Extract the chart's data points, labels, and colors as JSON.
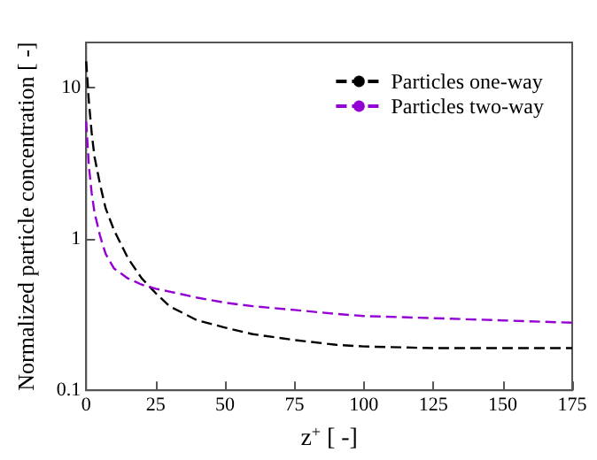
{
  "chart_data": {
    "type": "line",
    "xlabel": "z$^{+}$ [ -]",
    "ylabel": "Normalized particle concentration [ -]",
    "log": "y",
    "xlim": [
      0,
      175
    ],
    "xticks": [
      0,
      25,
      50,
      75,
      100,
      125,
      150,
      175
    ],
    "ylim": [
      0.1,
      20
    ],
    "yticks": [
      0.1,
      1,
      10
    ],
    "grid": false,
    "legend": "top right",
    "line_style": "dashed",
    "marker": "none",
    "x": [
      0,
      1,
      2,
      3,
      5,
      7,
      10,
      15,
      20,
      25,
      30,
      40,
      50,
      60,
      75,
      90,
      100,
      125,
      150,
      175
    ],
    "series": [
      {
        "name": "Particles one-way",
        "color": "#000000",
        "values": [
          15,
          8,
          5,
          3.5,
          2.3,
          1.6,
          1.15,
          0.75,
          0.55,
          0.44,
          0.36,
          0.29,
          0.26,
          0.235,
          0.215,
          0.2,
          0.195,
          0.19,
          0.19,
          0.19
        ]
      },
      {
        "name": "Particles two-way",
        "color": "#9400d3",
        "values": [
          6,
          3,
          2,
          1.5,
          1.05,
          0.8,
          0.64,
          0.55,
          0.5,
          0.47,
          0.45,
          0.41,
          0.38,
          0.36,
          0.34,
          0.32,
          0.31,
          0.3,
          0.29,
          0.28
        ]
      }
    ]
  }
}
